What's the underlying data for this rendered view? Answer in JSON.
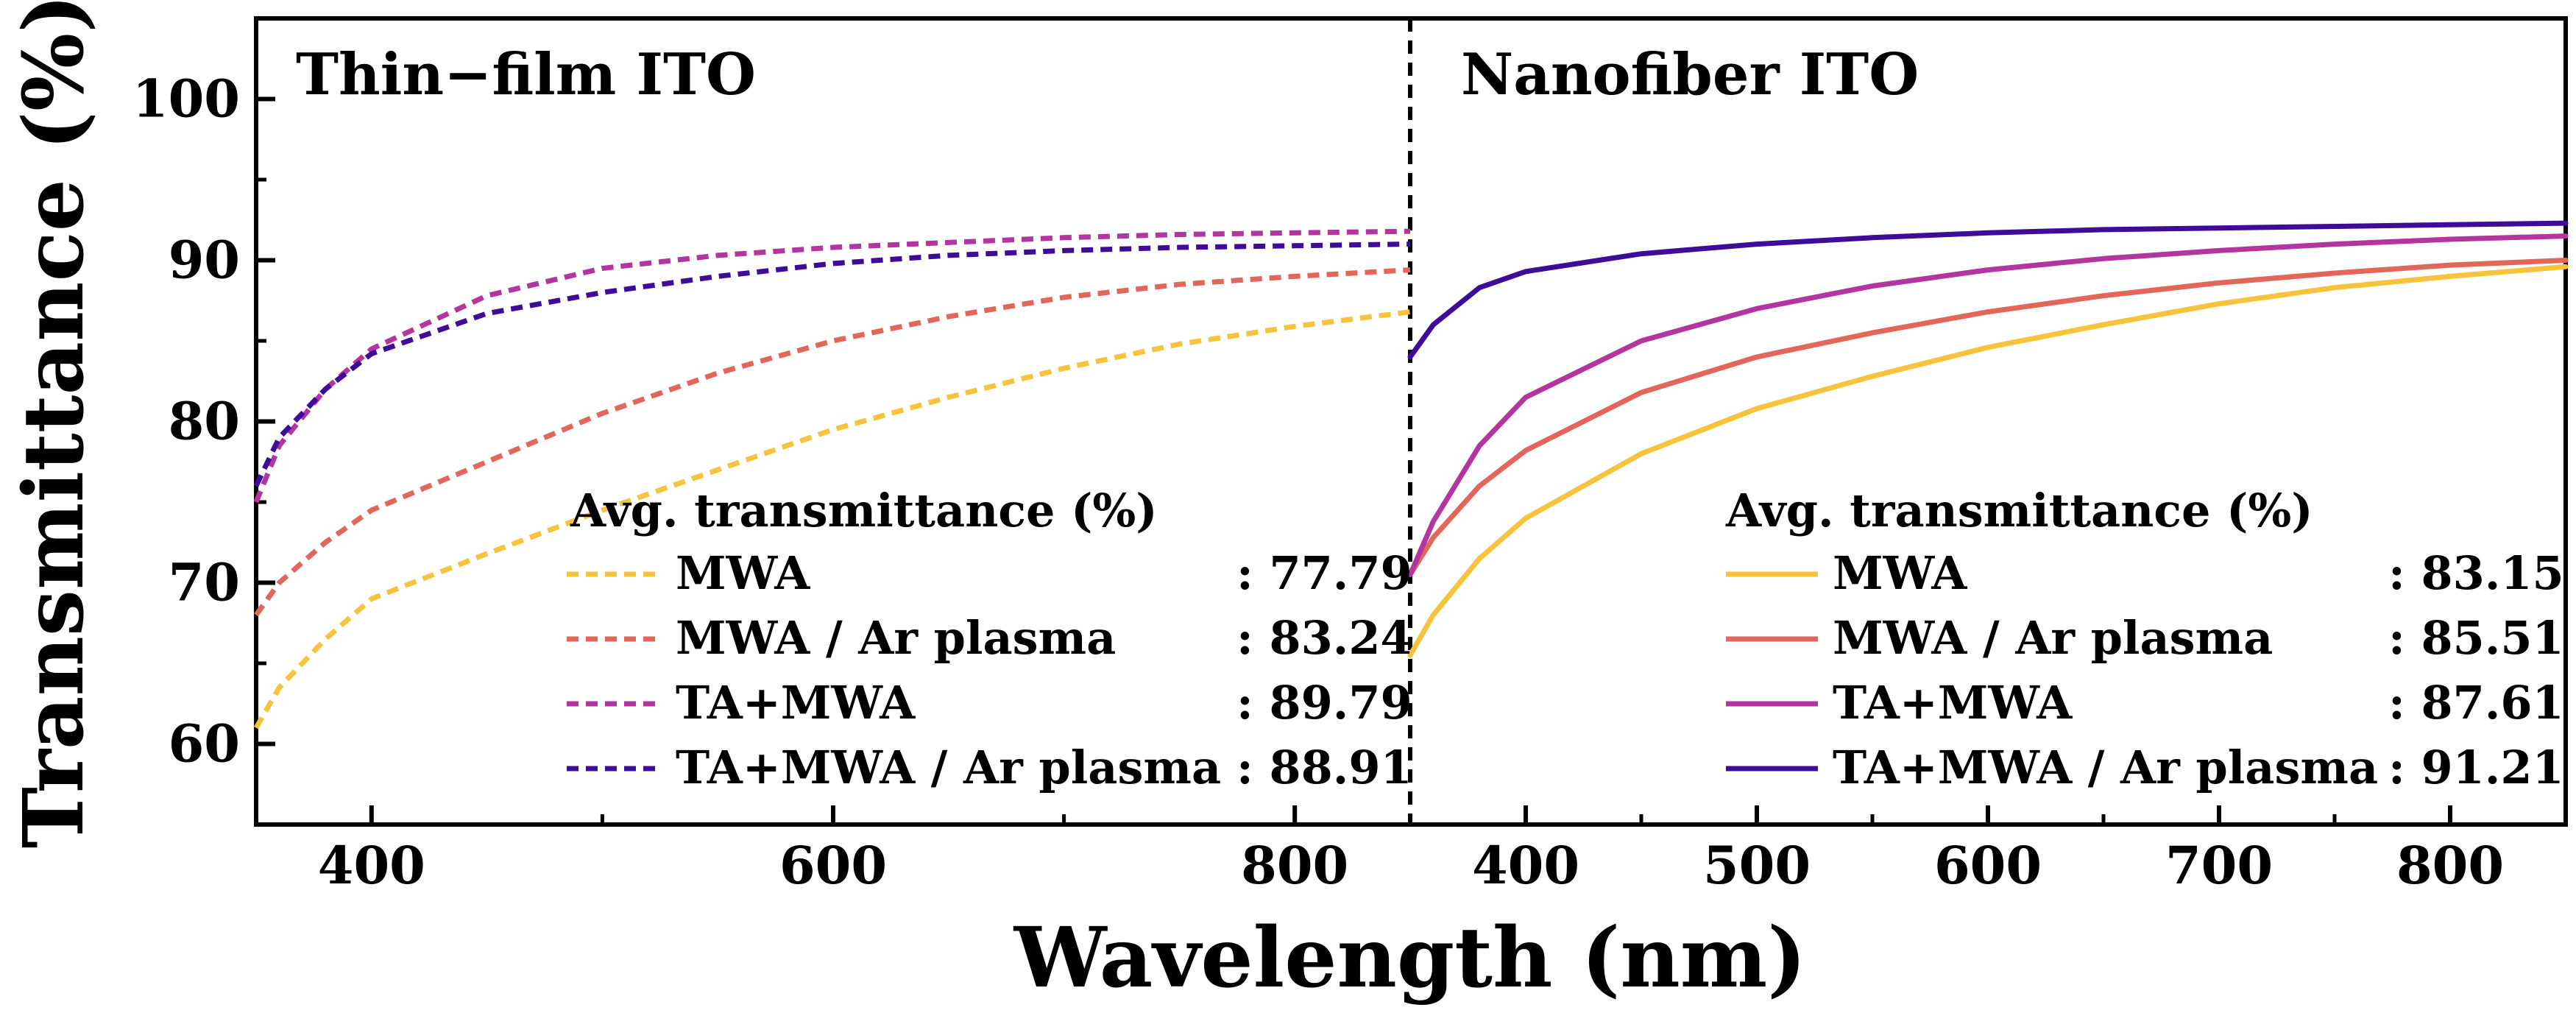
{
  "figure": {
    "ylabel": "Transmittance (%)",
    "xlabel": "Wavelength (nm)"
  },
  "chart_data": [
    {
      "type": "line",
      "title": "Thin−film ITO",
      "line_style": "dashed",
      "xlabel": "Wavelength (nm)",
      "ylabel": "Transmittance (%)",
      "xlim": [
        350,
        850
      ],
      "ylim": [
        55,
        105
      ],
      "xticks": [
        "400",
        "600",
        "800"
      ],
      "yticks": [
        "60",
        "70",
        "80",
        "90",
        "100"
      ],
      "legend_title": "Avg. transmittance (%)",
      "x": [
        350,
        360,
        380,
        400,
        450,
        500,
        550,
        600,
        650,
        700,
        750,
        800,
        850
      ],
      "series": [
        {
          "name": "MWA",
          "avg": ": 77.79",
          "color": "#f7c33c",
          "values": [
            61.0,
            63.5,
            66.5,
            69.0,
            71.8,
            74.5,
            77.0,
            79.5,
            81.5,
            83.3,
            84.8,
            85.9,
            86.8
          ]
        },
        {
          "name": "MWA / Ar plasma",
          "avg": ": 83.24",
          "color": "#e2665a",
          "values": [
            68.0,
            70.0,
            72.5,
            74.5,
            77.5,
            80.5,
            83.0,
            85.0,
            86.5,
            87.7,
            88.5,
            89.0,
            89.4
          ]
        },
        {
          "name": "TA+MWA",
          "avg": ": 89.79",
          "color": "#b3359f",
          "values": [
            75.0,
            78.5,
            82.0,
            84.5,
            87.8,
            89.5,
            90.3,
            90.8,
            91.1,
            91.4,
            91.6,
            91.7,
            91.8
          ]
        },
        {
          "name": "TA+MWA / Ar plasma",
          "avg": ": 88.91",
          "color": "#3e0c99",
          "values": [
            76.0,
            79.0,
            82.0,
            84.2,
            86.7,
            88.0,
            89.0,
            89.8,
            90.3,
            90.6,
            90.8,
            90.9,
            91.0
          ]
        }
      ]
    },
    {
      "type": "line",
      "title": "Nanofiber ITO",
      "line_style": "solid",
      "xlabel": "Wavelength (nm)",
      "ylabel": "Transmittance (%)",
      "xlim": [
        350,
        850
      ],
      "ylim": [
        55,
        105
      ],
      "xticks": [
        "400",
        "500",
        "600",
        "700",
        "800"
      ],
      "legend_title": "Avg. transmittance (%)",
      "x": [
        350,
        360,
        380,
        400,
        450,
        500,
        550,
        600,
        650,
        700,
        750,
        800,
        850
      ],
      "series": [
        {
          "name": "MWA",
          "avg": ": 83.15",
          "color": "#f7c33c",
          "values": [
            65.5,
            68.0,
            71.5,
            74.0,
            78.0,
            80.8,
            82.8,
            84.6,
            86.0,
            87.3,
            88.3,
            89.0,
            89.6
          ]
        },
        {
          "name": "MWA / Ar plasma",
          "avg": ": 85.51",
          "color": "#e2665a",
          "values": [
            70.5,
            72.8,
            76.0,
            78.2,
            81.8,
            84.0,
            85.5,
            86.8,
            87.8,
            88.6,
            89.2,
            89.7,
            90.0
          ]
        },
        {
          "name": "TA+MWA",
          "avg": ": 87.61",
          "color": "#b3359f",
          "values": [
            70.5,
            73.8,
            78.5,
            81.5,
            85.0,
            87.0,
            88.4,
            89.4,
            90.1,
            90.6,
            91.0,
            91.3,
            91.5
          ]
        },
        {
          "name": "TA+MWA / Ar plasma",
          "avg": ": 91.21",
          "color": "#3e0c99",
          "values": [
            84.0,
            86.0,
            88.3,
            89.3,
            90.4,
            91.0,
            91.4,
            91.7,
            91.9,
            92.0,
            92.1,
            92.2,
            92.3
          ]
        }
      ]
    }
  ]
}
